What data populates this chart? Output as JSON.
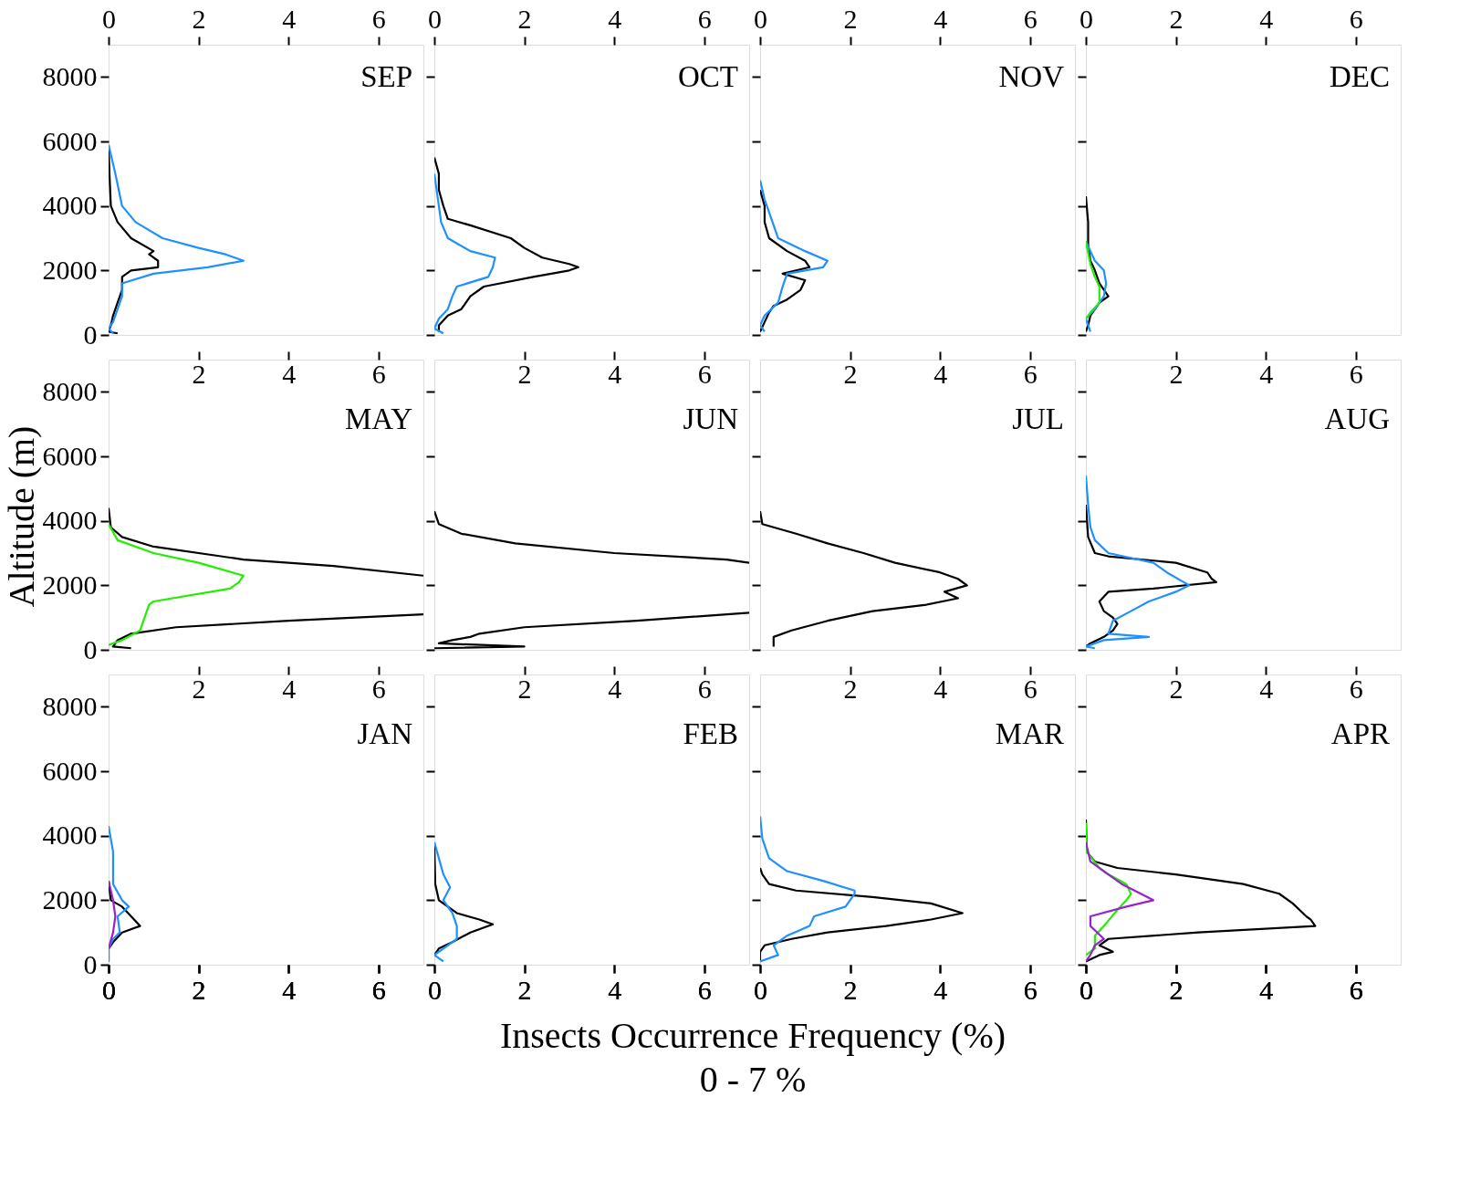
{
  "chart_data": [
    {
      "type": "line",
      "title": "SEP",
      "xlim": [
        0,
        7
      ],
      "xticks": [
        0,
        2,
        4,
        6
      ],
      "ylim": [
        0,
        9000
      ],
      "yticks": [
        0,
        2000,
        4000,
        6000,
        8000
      ],
      "series": [
        {
          "color": "#000000",
          "x": [
            0,
            0.02,
            0.05,
            0.2,
            0.5,
            1.0,
            0.9,
            1.1,
            1.1,
            0.5,
            0.3,
            0.3,
            0.2,
            0.1,
            0.05,
            0,
            0.2
          ],
          "values": [
            5800,
            5000,
            4000,
            3500,
            3000,
            2600,
            2500,
            2300,
            2100,
            2000,
            1800,
            1400,
            1000,
            600,
            300,
            100,
            50
          ]
        },
        {
          "color": "#1e90ff",
          "x": [
            0,
            0.15,
            0.3,
            0.6,
            1.2,
            2.0,
            2.6,
            3.0,
            2.2,
            1.0,
            0.3,
            0.3,
            0.2,
            0.1,
            0,
            0.1
          ],
          "values": [
            5900,
            5000,
            4000,
            3500,
            3000,
            2700,
            2500,
            2300,
            2100,
            1900,
            1600,
            1200,
            800,
            400,
            200,
            50
          ]
        }
      ]
    },
    {
      "type": "line",
      "title": "OCT",
      "xlim": [
        0,
        7
      ],
      "xticks": [
        0,
        2,
        4,
        6
      ],
      "ylim": [
        0,
        9000
      ],
      "yticks": [
        0,
        2000,
        4000,
        6000,
        8000
      ],
      "tick_labels": "x",
      "series": [
        {
          "color": "#000000",
          "x": [
            0,
            0.1,
            0.1,
            0.2,
            0.3,
            0.8,
            1.7,
            2.0,
            2.4,
            3.0,
            3.2,
            3.0,
            2.2,
            1.1,
            0.8,
            0.6,
            0.3,
            0.1,
            0.1
          ],
          "values": [
            5500,
            5000,
            4500,
            4000,
            3600,
            3400,
            3000,
            2700,
            2400,
            2200,
            2100,
            2000,
            1800,
            1500,
            1200,
            800,
            600,
            300,
            100
          ]
        },
        {
          "color": "#1e90ff",
          "x": [
            0,
            0.1,
            0.15,
            0.3,
            0.8,
            1.35,
            1.3,
            1.2,
            0.5,
            0.4,
            0.3,
            0.1,
            0,
            0.2
          ],
          "values": [
            5000,
            4000,
            3500,
            3000,
            2600,
            2400,
            2100,
            1800,
            1500,
            1200,
            800,
            500,
            200,
            50
          ]
        }
      ]
    },
    {
      "type": "line",
      "title": "NOV",
      "xlim": [
        0,
        7
      ],
      "xticks": [
        0,
        2,
        4,
        6
      ],
      "ylim": [
        0,
        9000
      ],
      "yticks": [
        0,
        2000,
        4000,
        6000,
        8000
      ],
      "tick_labels": "x",
      "series": [
        {
          "color": "#000000",
          "x": [
            0,
            0.1,
            0.1,
            0.2,
            0.6,
            1.0,
            1.1,
            0.5,
            1.0,
            0.9,
            0.6,
            0.3,
            0.2,
            0.1,
            0
          ],
          "values": [
            4500,
            4000,
            3500,
            3000,
            2600,
            2300,
            2100,
            1900,
            1700,
            1400,
            1100,
            900,
            700,
            400,
            100
          ]
        },
        {
          "color": "#1e90ff",
          "x": [
            0,
            0.1,
            0.2,
            0.4,
            1.0,
            1.5,
            1.4,
            0.6,
            0.5,
            0.4,
            0.1,
            0,
            0.1
          ],
          "values": [
            4800,
            4200,
            3800,
            3000,
            2600,
            2300,
            2100,
            1900,
            1500,
            1000,
            600,
            300,
            100
          ]
        }
      ]
    },
    {
      "type": "line",
      "title": "DEC",
      "xlim": [
        0,
        7
      ],
      "xticks": [
        0,
        2,
        4,
        6
      ],
      "ylim": [
        0,
        9000
      ],
      "yticks": [
        0,
        2000,
        4000,
        6000,
        8000
      ],
      "tick_labels": "x",
      "series": [
        {
          "color": "#000000",
          "x": [
            0,
            0.05,
            0.05,
            0.1,
            0.2,
            0.3,
            0.5,
            0.3,
            0.1,
            0.05,
            0
          ],
          "values": [
            4300,
            3500,
            2800,
            2300,
            2000,
            1600,
            1200,
            1000,
            600,
            300,
            100
          ]
        },
        {
          "color": "#1e90ff",
          "x": [
            0,
            0.2,
            0.4,
            0.45,
            0.4,
            0.2,
            0,
            0.1
          ],
          "values": [
            2900,
            2300,
            2000,
            1600,
            1200,
            800,
            500,
            100
          ]
        },
        {
          "color": "#22ee00",
          "x": [
            0,
            0.1,
            0.2,
            0.3,
            0.3,
            0.1,
            0
          ],
          "values": [
            2900,
            2200,
            1800,
            1500,
            1000,
            700,
            500
          ]
        }
      ]
    },
    {
      "type": "line",
      "title": "MAY",
      "xlim": [
        0,
        7
      ],
      "xticks": [
        2,
        4,
        6
      ],
      "ylim": [
        0,
        9000
      ],
      "yticks": [
        0,
        2000,
        4000,
        6000,
        8000
      ],
      "ylabel": "Altitude (m)",
      "series": [
        {
          "color": "#000000",
          "x": [
            0,
            0.05,
            0.3,
            1.0,
            3.0,
            5.0,
            7.0,
            null,
            7.0,
            4.0,
            1.5,
            0.5,
            0.2,
            0.1,
            0.5
          ],
          "values": [
            4400,
            3800,
            3500,
            3200,
            2800,
            2600,
            2300,
            null,
            1100,
            900,
            700,
            500,
            300,
            100,
            50
          ]
        },
        {
          "color": "#22ee00",
          "x": [
            0,
            0.2,
            1.0,
            2.0,
            3.0,
            2.9,
            2.7,
            1.0,
            0.9,
            0.8,
            0.7,
            0.3,
            0
          ],
          "values": [
            3900,
            3400,
            3000,
            2700,
            2300,
            2100,
            1900,
            1500,
            1400,
            1000,
            600,
            300,
            150
          ]
        }
      ]
    },
    {
      "type": "line",
      "title": "JUN",
      "xlim": [
        0,
        7
      ],
      "xticks": [
        2,
        4,
        6
      ],
      "ylim": [
        0,
        9000
      ],
      "yticks": [
        0,
        2000,
        4000,
        6000,
        8000
      ],
      "tick_labels": "x",
      "series": [
        {
          "color": "#000000",
          "x": [
            0,
            0.1,
            0.6,
            1.8,
            4.0,
            6.5,
            7.0,
            null,
            7.0,
            4.5,
            2.0,
            1.0,
            0.8,
            0.4,
            0.1,
            2.0,
            0
          ],
          "values": [
            4300,
            3900,
            3600,
            3300,
            3000,
            2800,
            2700,
            null,
            1150,
            900,
            700,
            500,
            400,
            300,
            200,
            100,
            50
          ]
        }
      ]
    },
    {
      "type": "line",
      "title": "JUL",
      "xlim": [
        0,
        7
      ],
      "xticks": [
        2,
        4,
        6
      ],
      "ylim": [
        0,
        9000
      ],
      "yticks": [
        0,
        2000,
        4000,
        6000,
        8000
      ],
      "tick_labels": "x",
      "series": [
        {
          "color": "#000000",
          "x": [
            0,
            0.05,
            0.8,
            1.5,
            2.3,
            3.0,
            4.0,
            4.4,
            4.6,
            4.1,
            4.4,
            3.7,
            2.5,
            1.5,
            0.7,
            0.3,
            0.3
          ],
          "values": [
            4300,
            3900,
            3600,
            3300,
            3000,
            2700,
            2400,
            2200,
            2000,
            1800,
            1600,
            1400,
            1200,
            900,
            600,
            400,
            100
          ]
        }
      ]
    },
    {
      "type": "line",
      "title": "AUG",
      "xlim": [
        0,
        7
      ],
      "xticks": [
        2,
        4,
        6
      ],
      "ylim": [
        0,
        9000
      ],
      "yticks": [
        0,
        2000,
        4000,
        6000,
        8000
      ],
      "tick_labels": "x",
      "series": [
        {
          "color": "#000000",
          "x": [
            0,
            0.05,
            0.2,
            0.5,
            2.0,
            2.7,
            2.8,
            2.9,
            1.5,
            0.5,
            0.3,
            0.4,
            0.6,
            0.7,
            0.6,
            0.4,
            0.1,
            0
          ],
          "values": [
            4500,
            3500,
            3000,
            2900,
            2700,
            2400,
            2200,
            2100,
            1900,
            1800,
            1500,
            1200,
            1000,
            800,
            600,
            400,
            200,
            100
          ]
        },
        {
          "color": "#1e90ff",
          "x": [
            0,
            0.05,
            0.1,
            0.2,
            0.5,
            1.5,
            1.8,
            2.3,
            2.0,
            1.4,
            1.0,
            0.6,
            0.5,
            1.4,
            0.4,
            0,
            0.2
          ],
          "values": [
            5400,
            4500,
            3800,
            3400,
            3000,
            2700,
            2400,
            2000,
            1800,
            1500,
            1200,
            900,
            500,
            400,
            300,
            100,
            50
          ]
        }
      ]
    },
    {
      "type": "line",
      "title": "JAN",
      "xlim": [
        0,
        7
      ],
      "xticks": [
        0,
        2,
        4,
        6
      ],
      "x2lim": [
        0,
        7
      ],
      "x2ticks": [
        2,
        4,
        6
      ],
      "ylim": [
        0,
        9000
      ],
      "yticks": [
        0,
        2000,
        4000,
        6000,
        8000
      ],
      "series": [
        {
          "color": "#000000",
          "x": [
            0,
            0.05,
            0.3,
            0.5,
            0.7,
            0.3,
            0.1,
            0,
            0
          ],
          "values": [
            2600,
            2000,
            1800,
            1500,
            1200,
            1000,
            700,
            500,
            100
          ]
        },
        {
          "color": "#1e90ff",
          "x": [
            0,
            0.1,
            0.1,
            0.1,
            0.3,
            0.45,
            0.2,
            0.25,
            0.1,
            0,
            0
          ],
          "values": [
            4300,
            3500,
            3000,
            2500,
            2000,
            1800,
            1500,
            1000,
            800,
            500,
            100
          ]
        },
        {
          "color": "#9922cc",
          "x": [
            0,
            0.1,
            0.15,
            0.1,
            0
          ],
          "values": [
            2600,
            2000,
            1500,
            1000,
            500
          ]
        }
      ]
    },
    {
      "type": "line",
      "title": "FEB",
      "xlim": [
        0,
        7
      ],
      "xticks": [
        0,
        2,
        4,
        6
      ],
      "x2lim": [
        0,
        7
      ],
      "x2ticks": [
        2,
        4,
        6
      ],
      "ylim": [
        0,
        9000
      ],
      "yticks": [
        0,
        2000,
        4000,
        6000,
        8000
      ],
      "tick_labels": "x",
      "xlabel": "Insects Occurrence Frequency (%)",
      "annotations": [
        "0 - 7 %"
      ],
      "series": [
        {
          "color": "#000000",
          "x": [
            0,
            0.02,
            0.1,
            0.5,
            1.0,
            1.3,
            0.8,
            0.4,
            0.1,
            0
          ],
          "values": [
            3700,
            2500,
            2000,
            1600,
            1400,
            1250,
            1000,
            700,
            500,
            300
          ]
        },
        {
          "color": "#1e90ff",
          "x": [
            0,
            0.1,
            0.2,
            0.35,
            0.2,
            0.4,
            0.5,
            0.5,
            0.2,
            0,
            0.2
          ],
          "values": [
            3800,
            3300,
            2800,
            2400,
            2000,
            1600,
            1200,
            800,
            500,
            300,
            100
          ]
        }
      ]
    },
    {
      "type": "line",
      "title": "MAR",
      "xlim": [
        0,
        7
      ],
      "xticks": [
        0,
        2,
        4,
        6
      ],
      "x2lim": [
        0,
        7
      ],
      "x2ticks": [
        2,
        4,
        6
      ],
      "ylim": [
        0,
        9000
      ],
      "yticks": [
        0,
        2000,
        4000,
        6000,
        8000
      ],
      "tick_labels": "x",
      "series": [
        {
          "color": "#000000",
          "x": [
            0,
            0.05,
            0.2,
            0.8,
            2.5,
            3.8,
            4.5,
            3.8,
            2.8,
            1.5,
            0.7,
            0.1,
            0,
            0
          ],
          "values": [
            3000,
            2800,
            2500,
            2300,
            2100,
            1900,
            1600,
            1400,
            1200,
            1000,
            800,
            600,
            400,
            100
          ]
        },
        {
          "color": "#1e90ff",
          "x": [
            0,
            0.05,
            0.2,
            0.6,
            1.4,
            2.1,
            2.1,
            2.0,
            1.9,
            1.2,
            1.1,
            0.6,
            0.3,
            0.4,
            0
          ],
          "values": [
            4600,
            3900,
            3300,
            2900,
            2600,
            2300,
            2200,
            2000,
            1800,
            1500,
            1200,
            900,
            600,
            300,
            100
          ]
        }
      ]
    },
    {
      "type": "line",
      "title": "APR",
      "xlim": [
        0,
        7
      ],
      "xticks": [
        0,
        2,
        4,
        6
      ],
      "x2lim": [
        0,
        7
      ],
      "x2ticks": [
        2,
        4,
        6
      ],
      "ylim": [
        0,
        9000
      ],
      "yticks": [
        0,
        2000,
        4000,
        6000,
        8000
      ],
      "tick_labels": "x",
      "series": [
        {
          "color": "#000000",
          "x": [
            0,
            0.02,
            0.2,
            0.7,
            2.0,
            3.5,
            4.3,
            4.6,
            4.9,
            5.0,
            5.1,
            2.5,
            0.5,
            0.3,
            0.6,
            0.3,
            0
          ],
          "values": [
            4500,
            3500,
            3200,
            3000,
            2800,
            2500,
            2200,
            1900,
            1500,
            1400,
            1200,
            1000,
            800,
            600,
            400,
            300,
            100
          ]
        },
        {
          "color": "#22ee00",
          "x": [
            0,
            0.02,
            0.3,
            0.5,
            0.9,
            1.0,
            0.9,
            0.7,
            0.4,
            0.2,
            0.2,
            0
          ],
          "values": [
            4400,
            3500,
            3000,
            2800,
            2500,
            2200,
            2000,
            1700,
            1200,
            900,
            500,
            300
          ]
        },
        {
          "color": "#9922cc",
          "x": [
            0,
            0.1,
            0.4,
            0.8,
            1.5,
            0.9,
            0.1,
            0.1,
            0.4,
            0.2,
            0.1,
            0
          ],
          "values": [
            3800,
            3200,
            2900,
            2500,
            2000,
            1800,
            1500,
            1200,
            800,
            600,
            300,
            100
          ]
        }
      ]
    }
  ]
}
